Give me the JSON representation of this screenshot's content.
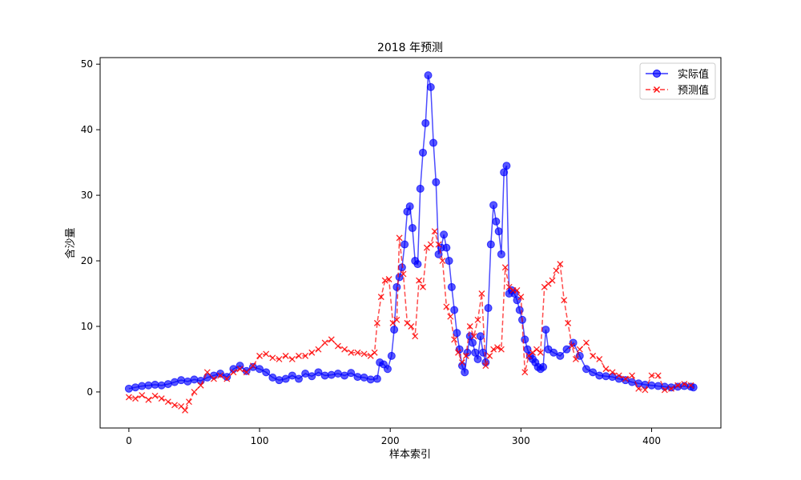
{
  "chart_data": {
    "type": "line",
    "title": "2018 年预测",
    "xlabel": "样本索引",
    "ylabel": "含沙量",
    "xlim": [
      -22,
      453
    ],
    "ylim": [
      -5.5,
      51
    ],
    "xticks": [
      0,
      100,
      200,
      300,
      400
    ],
    "yticks": [
      0,
      10,
      20,
      30,
      40,
      50
    ],
    "grid": false,
    "legend_position": "top-right",
    "series": [
      {
        "name": "实际值",
        "color": "#0000ff",
        "line_style": "solid",
        "marker": "circle",
        "x": [
          0,
          5,
          10,
          15,
          20,
          25,
          30,
          35,
          40,
          45,
          50,
          55,
          60,
          65,
          70,
          75,
          80,
          85,
          90,
          95,
          100,
          105,
          110,
          115,
          120,
          125,
          130,
          135,
          140,
          145,
          150,
          155,
          160,
          165,
          170,
          175,
          180,
          185,
          190,
          192,
          195,
          198,
          201,
          203,
          205,
          207,
          209,
          211,
          213,
          215,
          217,
          219,
          221,
          223,
          225,
          227,
          229,
          231,
          233,
          235,
          237,
          239,
          241,
          243,
          245,
          247,
          249,
          251,
          253,
          255,
          257,
          259,
          261,
          263,
          265,
          267,
          269,
          271,
          273,
          275,
          277,
          279,
          281,
          283,
          285,
          287,
          289,
          291,
          293,
          295,
          297,
          299,
          301,
          303,
          305,
          307,
          309,
          311,
          313,
          315,
          317,
          319,
          321,
          325,
          330,
          335,
          340,
          345,
          350,
          355,
          360,
          365,
          370,
          375,
          380,
          385,
          390,
          395,
          400,
          405,
          410,
          415,
          420,
          425,
          430,
          432
        ],
        "y": [
          0.5,
          0.7,
          0.9,
          1.0,
          1.1,
          1.0,
          1.2,
          1.5,
          1.8,
          1.6,
          1.9,
          1.7,
          2.2,
          2.5,
          2.8,
          2.3,
          3.5,
          4.0,
          3.2,
          3.8,
          3.5,
          3.0,
          2.2,
          1.8,
          2.0,
          2.5,
          2.0,
          2.8,
          2.4,
          3.0,
          2.5,
          2.6,
          2.8,
          2.5,
          2.9,
          2.3,
          2.2,
          1.9,
          2.0,
          4.5,
          4.2,
          3.5,
          5.5,
          9.5,
          16.0,
          17.5,
          19.0,
          22.5,
          27.5,
          28.3,
          25.0,
          20.0,
          19.5,
          31.0,
          36.5,
          41.0,
          48.3,
          46.5,
          38.0,
          32.0,
          21.0,
          22.0,
          24.0,
          22.0,
          20.0,
          16.0,
          12.5,
          9.0,
          6.5,
          4.0,
          3.0,
          6.0,
          8.5,
          7.5,
          6.0,
          5.0,
          8.5,
          6.0,
          4.5,
          12.8,
          22.5,
          28.5,
          26.0,
          24.5,
          21.0,
          33.5,
          34.5,
          15.0,
          15.5,
          15.0,
          14.0,
          12.5,
          11.0,
          8.0,
          6.5,
          5.5,
          5.0,
          4.5,
          3.8,
          3.5,
          3.8,
          9.5,
          6.5,
          6.0,
          5.5,
          6.5,
          7.5,
          5.5,
          3.5,
          3.0,
          2.5,
          2.4,
          2.3,
          2.0,
          1.8,
          1.5,
          1.3,
          1.1,
          1.0,
          0.9,
          0.8,
          0.7,
          0.8,
          0.9,
          0.8,
          0.7
        ]
      },
      {
        "name": "预测值",
        "color": "#ff0000",
        "line_style": "dashed",
        "marker": "x",
        "x": [
          0,
          5,
          10,
          15,
          20,
          25,
          30,
          35,
          40,
          43,
          46,
          50,
          55,
          60,
          65,
          70,
          75,
          80,
          85,
          90,
          95,
          100,
          105,
          110,
          115,
          120,
          125,
          130,
          135,
          140,
          145,
          150,
          155,
          160,
          165,
          170,
          175,
          180,
          185,
          188,
          190,
          193,
          196,
          199,
          202,
          205,
          207,
          210,
          213,
          216,
          219,
          222,
          225,
          228,
          231,
          234,
          237,
          240,
          243,
          246,
          249,
          252,
          255,
          258,
          261,
          264,
          267,
          270,
          273,
          276,
          279,
          282,
          285,
          288,
          291,
          294,
          297,
          300,
          303,
          306,
          309,
          312,
          315,
          318,
          321,
          324,
          327,
          330,
          333,
          336,
          339,
          342,
          345,
          350,
          355,
          360,
          365,
          370,
          375,
          380,
          385,
          390,
          395,
          400,
          405,
          410,
          415,
          420,
          425,
          430
        ],
        "y": [
          -0.8,
          -1.0,
          -0.5,
          -1.2,
          -0.6,
          -1.0,
          -1.5,
          -2.0,
          -2.2,
          -2.8,
          -1.5,
          0.0,
          1.0,
          3.0,
          2.0,
          2.5,
          2.0,
          3.0,
          3.5,
          3.0,
          4.0,
          5.5,
          5.8,
          5.2,
          5.0,
          5.5,
          5.0,
          5.5,
          5.5,
          6.0,
          6.5,
          7.5,
          8.0,
          7.0,
          6.5,
          6.0,
          6.0,
          5.8,
          5.5,
          6.0,
          10.5,
          14.5,
          17.0,
          17.2,
          10.5,
          11.0,
          23.5,
          18.0,
          10.5,
          10.0,
          8.5,
          17.0,
          16.0,
          22.0,
          22.5,
          24.5,
          22.5,
          20.0,
          13.0,
          11.5,
          8.0,
          6.0,
          4.5,
          5.5,
          10.0,
          8.5,
          11.0,
          15.0,
          4.0,
          5.5,
          6.5,
          6.8,
          6.5,
          19.0,
          16.0,
          15.5,
          15.5,
          14.5,
          3.0,
          5.5,
          6.0,
          6.5,
          6.0,
          16.0,
          16.5,
          17.0,
          18.5,
          19.5,
          14.0,
          10.5,
          7.0,
          5.0,
          6.5,
          7.5,
          5.5,
          5.0,
          3.5,
          3.0,
          2.5,
          2.0,
          2.5,
          0.5,
          0.3,
          2.5,
          2.5,
          0.3,
          0.5,
          1.0,
          1.2,
          1.0
        ]
      }
    ]
  }
}
